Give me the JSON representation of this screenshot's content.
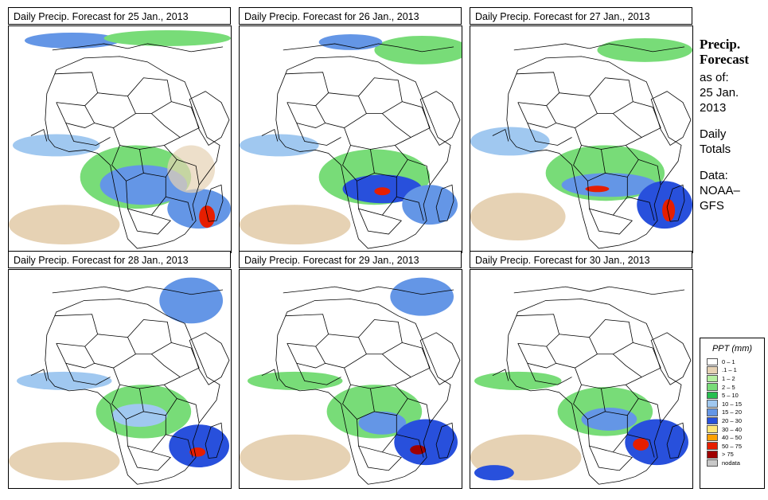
{
  "panels": [
    {
      "title": "Daily Precip. Forecast for  25 Jan., 2013"
    },
    {
      "title": "Daily Precip. Forecast for  26 Jan., 2013"
    },
    {
      "title": "Daily Precip. Forecast for  27 Jan., 2013"
    },
    {
      "title": "Daily Precip. Forecast for  28 Jan., 2013"
    },
    {
      "title": "Daily Precip. Forecast for  29 Jan., 2013"
    },
    {
      "title": "Daily Precip. Forecast for  30 Jan., 2013"
    }
  ],
  "sidebar": {
    "heading_line1": "Precip.",
    "heading_line2": "Forecast",
    "asof_label": "as of:",
    "date_line1": "25 Jan.",
    "date_line2": "2013",
    "daily_line1": "Daily",
    "daily_line2": "Totals",
    "data_label": "Data:",
    "data_source_line1": "NOAA–",
    "data_source_line2": "GFS"
  },
  "legend": {
    "title": "PPT (mm)",
    "items": [
      {
        "label": "0 – 1",
        "color": "#ffffff"
      },
      {
        "label": ".1 – 1",
        "color": "#e6d2b4"
      },
      {
        "label": "1 – 2",
        "color": "#b4f0a0"
      },
      {
        "label": "2 – 5",
        "color": "#78dc78"
      },
      {
        "label": "5 – 10",
        "color": "#28be50"
      },
      {
        "label": "10 – 15",
        "color": "#a0c8f0"
      },
      {
        "label": "15 – 20",
        "color": "#6496e6"
      },
      {
        "label": "20 – 30",
        "color": "#2850dc"
      },
      {
        "label": "30 – 40",
        "color": "#ffe678"
      },
      {
        "label": "40 – 50",
        "color": "#ffa000"
      },
      {
        "label": "50 – 75",
        "color": "#e61e00"
      },
      {
        "label": "> 75",
        "color": "#a00000"
      },
      {
        "label": "nodata",
        "color": "#c8c8c8"
      }
    ]
  },
  "colors": {
    "tan": "#e6d2b4",
    "lightgreen": "#b4f0a0",
    "green": "#78dc78",
    "dkgreen": "#28be50",
    "lightblue": "#a0c8f0",
    "blue": "#6496e6",
    "dkblue": "#2850dc",
    "yellow": "#ffe678",
    "orange": "#ffa000",
    "red": "#e61e00",
    "darkred": "#a00000"
  }
}
